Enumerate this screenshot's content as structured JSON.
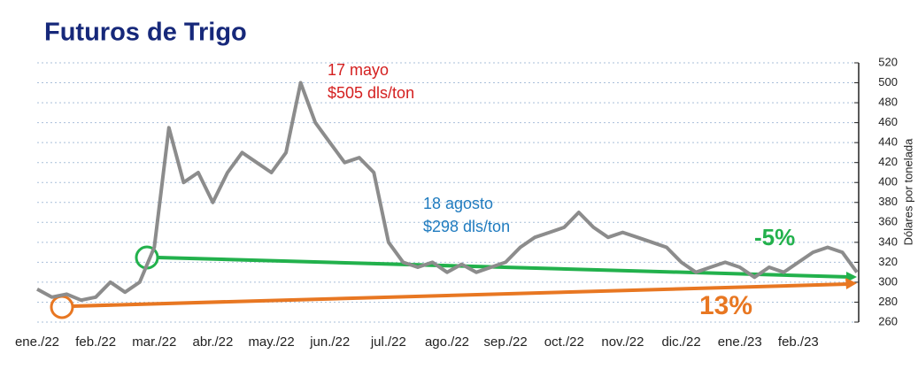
{
  "chart_data": {
    "type": "line",
    "title": "Futuros de Trigo",
    "y_axis_label": "Dólares por tonelada",
    "categories": [
      "ene./22",
      null,
      null,
      null,
      "feb./22",
      null,
      null,
      null,
      "mar./22",
      null,
      null,
      null,
      "abr./22",
      null,
      null,
      null,
      "may./22",
      null,
      null,
      null,
      "jun./22",
      null,
      null,
      null,
      "jul./22",
      null,
      null,
      null,
      "ago./22",
      null,
      null,
      null,
      "sep./22",
      null,
      null,
      null,
      "oct./22",
      null,
      null,
      null,
      "nov./22",
      null,
      null,
      null,
      "dic./22",
      null,
      null,
      null,
      "ene./23",
      null,
      null,
      null,
      "feb./23",
      null,
      null,
      null,
      null
    ],
    "series": [
      {
        "name": "Trigo",
        "color": "#8c8c8c",
        "values": [
          293,
          285,
          288,
          282,
          285,
          300,
          290,
          300,
          335,
          455,
          400,
          410,
          380,
          410,
          430,
          420,
          410,
          430,
          500,
          460,
          440,
          420,
          425,
          410,
          340,
          320,
          315,
          320,
          310,
          318,
          310,
          315,
          320,
          335,
          345,
          350,
          355,
          370,
          355,
          345,
          350,
          345,
          340,
          335,
          320,
          310,
          315,
          320,
          315,
          305,
          315,
          310,
          320,
          330,
          335,
          330,
          310
        ]
      }
    ],
    "ylim": [
      260,
      520
    ],
    "yticks": [
      260,
      280,
      300,
      320,
      340,
      360,
      380,
      400,
      420,
      440,
      460,
      480,
      500,
      520
    ],
    "grid": true,
    "annotations": [
      {
        "lines": [
          "17 mayo",
          "$505 dls/ton"
        ],
        "color": "#d42020"
      },
      {
        "lines": [
          "18 agosto",
          "$298 dls/ton"
        ],
        "color": "#1f7bbf"
      },
      {
        "text": "-5%",
        "color": "#22b14c"
      },
      {
        "text": "13%",
        "color": "#e87722"
      }
    ]
  }
}
